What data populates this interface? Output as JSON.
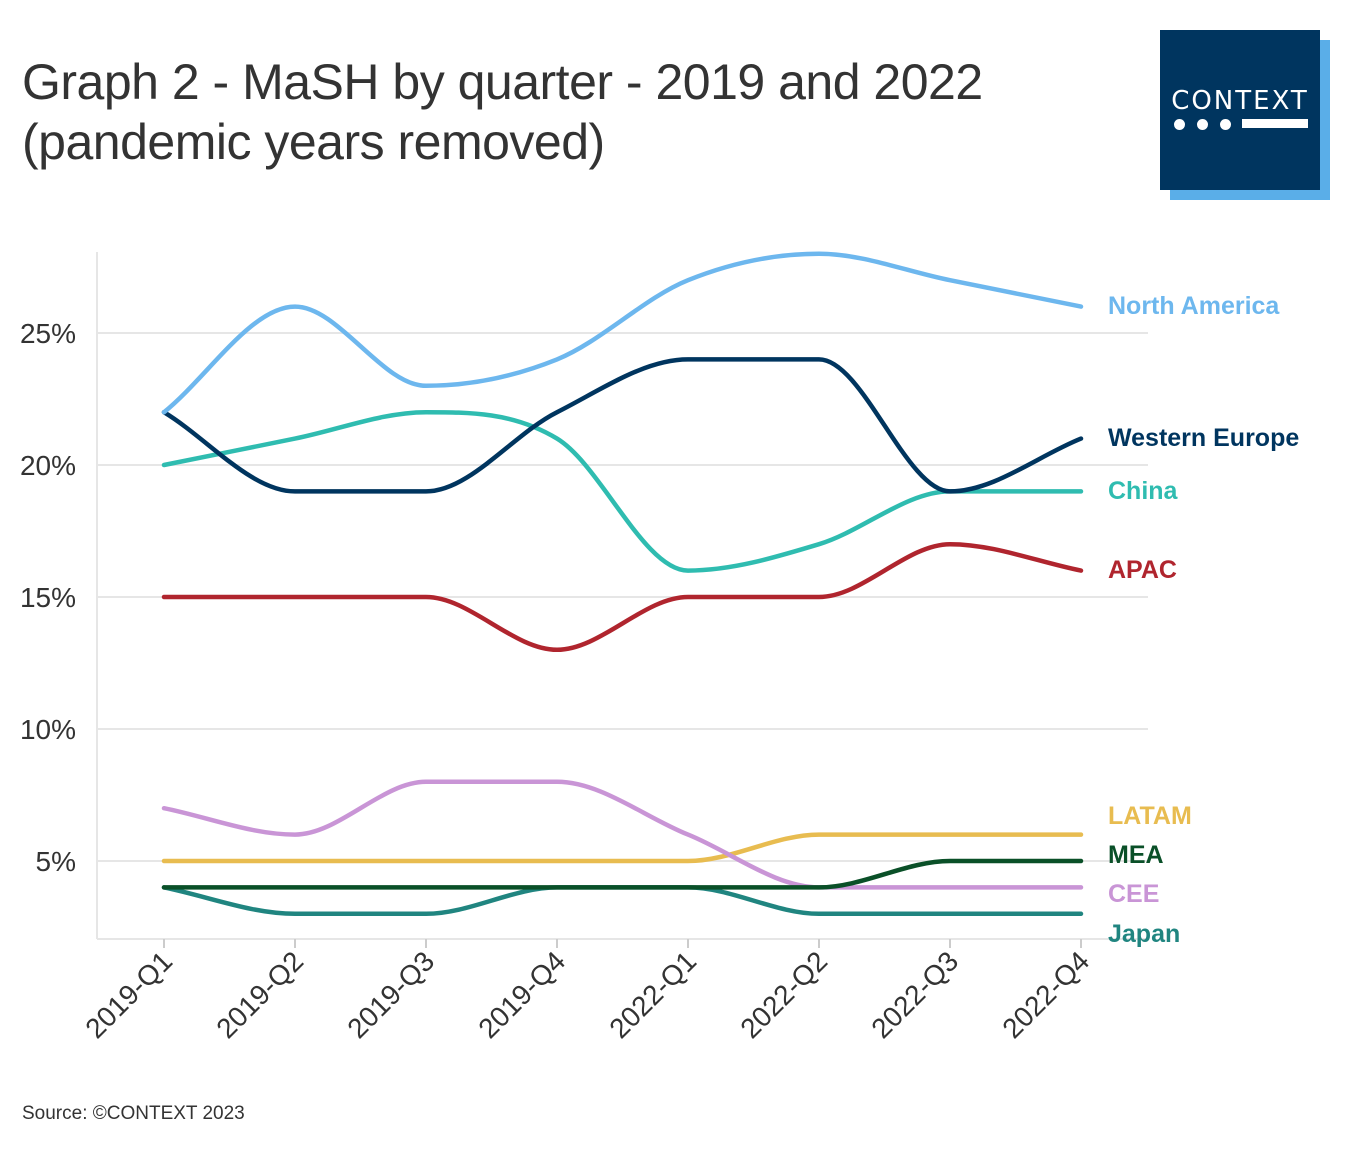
{
  "title_line1": "Graph 2 - MaSH by quarter - 2019 and 2022",
  "title_line2": "(pandemic years removed)",
  "logo_text": "CONTEXT",
  "source": "Source: ©CONTEXT 2023",
  "colors": {
    "logo_bg": "#00355f",
    "logo_shadow": "#5aaee8",
    "grid": "#e6e6e6"
  },
  "chart_data": {
    "type": "line",
    "x": [
      "2019-Q1",
      "2019-Q2",
      "2019-Q3",
      "2019-Q4",
      "2022-Q1",
      "2022-Q2",
      "2022-Q3",
      "2022-Q4"
    ],
    "ylim": [
      2,
      28
    ],
    "yticks": [
      5,
      10,
      15,
      20,
      25
    ],
    "ytick_labels": [
      "5%",
      "10%",
      "15%",
      "20%",
      "25%"
    ],
    "grid": true,
    "legend": "direct labels at right end of lines",
    "series": [
      {
        "name": "North America",
        "color": "#6db7ee",
        "values": [
          22,
          26,
          23,
          24,
          27,
          28,
          27,
          26
        ]
      },
      {
        "name": "Western Europe",
        "color": "#00355f",
        "values": [
          22,
          19,
          19,
          22,
          24,
          24,
          19,
          21
        ]
      },
      {
        "name": "China",
        "color": "#2fbcb0",
        "values": [
          20,
          21,
          22,
          21,
          16,
          17,
          19,
          19
        ]
      },
      {
        "name": "APAC",
        "color": "#b0252e",
        "values": [
          15,
          15,
          15,
          13,
          15,
          15,
          17,
          16
        ]
      },
      {
        "name": "LATAM",
        "color": "#e8bc50",
        "values": [
          5,
          5,
          5,
          5,
          5,
          6,
          6,
          6
        ]
      },
      {
        "name": "MEA",
        "color": "#0a5028",
        "values": [
          4,
          4,
          4,
          4,
          4,
          4,
          5,
          5
        ]
      },
      {
        "name": "CEE",
        "color": "#c995d6",
        "values": [
          7,
          6,
          8,
          8,
          6,
          4,
          4,
          4
        ]
      },
      {
        "name": "Japan",
        "color": "#208580",
        "values": [
          4,
          3,
          3,
          4,
          4,
          3,
          3,
          3
        ]
      }
    ]
  }
}
